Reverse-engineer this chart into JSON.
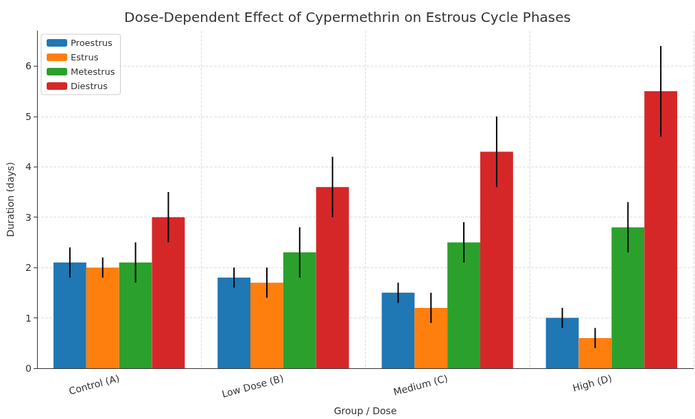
{
  "chart_data": {
    "type": "bar",
    "title": "Dose-Dependent Effect of Cypermethrin on Estrous Cycle Phases",
    "xlabel": "Group / Dose",
    "ylabel": "Duration (days)",
    "categories": [
      "Control (A)",
      "Low Dose (B)",
      "Medium (C)",
      "High (D)"
    ],
    "series": [
      {
        "name": "Proestrus",
        "color": "#1f77b4",
        "values": [
          2.1,
          1.8,
          1.5,
          1.0
        ],
        "errors": [
          0.3,
          0.2,
          0.2,
          0.2
        ]
      },
      {
        "name": "Estrus",
        "color": "#ff7f0e",
        "values": [
          2.0,
          1.7,
          1.2,
          0.6
        ],
        "errors": [
          0.2,
          0.3,
          0.3,
          0.2
        ]
      },
      {
        "name": "Metestrus",
        "color": "#2ca02c",
        "values": [
          2.1,
          2.3,
          2.5,
          2.8
        ],
        "errors": [
          0.4,
          0.5,
          0.4,
          0.5
        ]
      },
      {
        "name": "Diestrus",
        "color": "#d62728",
        "values": [
          3.0,
          3.6,
          4.3,
          5.5
        ],
        "errors": [
          0.5,
          0.6,
          0.7,
          0.9
        ]
      }
    ],
    "ylim": [
      0,
      6.7
    ],
    "yticks": [
      0,
      1,
      2,
      3,
      4,
      5,
      6
    ],
    "grid": true,
    "legend": "top left"
  }
}
